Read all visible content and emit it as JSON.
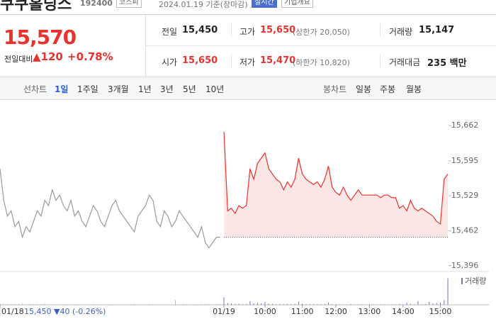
{
  "header": {
    "name": "쿠쿠홀딩스",
    "code": "192400",
    "market": "코스피",
    "date": "2024.01.19 기준(장마감)",
    "realtime": "실시간",
    "company_info": "기업개요"
  },
  "quote": {
    "price": "15,570",
    "change_label": "전일대비",
    "change": "▲120",
    "change_rate": "+0.78%",
    "rows": [
      [
        {
          "label": "전일",
          "value": "15,450"
        },
        {
          "label": "고가",
          "value": "15,650",
          "note": "(상한가 20,050)"
        },
        {
          "label": "거래량",
          "value": "15,147"
        }
      ],
      [
        {
          "label": "시가",
          "value": "15,650"
        },
        {
          "label": "저가",
          "value": "15,470",
          "note": "(하한가 10,820)"
        },
        {
          "label": "거래대금",
          "value": "235 백만"
        }
      ]
    ]
  },
  "tabs": {
    "line": "선차트",
    "periods": [
      "1일",
      "1주일",
      "3개월",
      "1년",
      "3년",
      "5년",
      "10년"
    ],
    "candle": "봉차트",
    "candle_periods": [
      "일봉",
      "주봉",
      "월봉"
    ]
  },
  "chart_data": {
    "type": "line",
    "xlim": [
      0,
      131
    ],
    "xticks": [
      {
        "value": 0,
        "label": "01/18"
      },
      {
        "value": 60,
        "label": "01/19"
      },
      {
        "value": 71,
        "label": "10:00"
      },
      {
        "value": 81,
        "label": "11:00"
      },
      {
        "value": 90,
        "label": "12:00"
      },
      {
        "value": 99,
        "label": "13:00"
      },
      {
        "value": 108,
        "label": "14:00"
      },
      {
        "value": 118,
        "label": "15:00"
      }
    ],
    "ylim": [
      15385,
      15701
    ],
    "yticks": [
      {
        "value": 15662,
        "label": "15,662"
      },
      {
        "value": 15595,
        "label": "15,595"
      },
      {
        "value": 15529,
        "label": "15,529"
      },
      {
        "value": 15462,
        "label": "15,462"
      },
      {
        "value": 15396,
        "label": "15,396"
      }
    ],
    "y2lim": [
      0,
      3000
    ],
    "baseline": 15450,
    "annotation": "15,450 ▼40 (-0.26%)",
    "grid": false,
    "series": [
      {
        "color": "#9a9a9a",
        "fill": false,
        "x": [
          0,
          1,
          2,
          3,
          4,
          5,
          6,
          7,
          8,
          9,
          10,
          11,
          12,
          13,
          14,
          15,
          16,
          17,
          18,
          19,
          20,
          21,
          22,
          23,
          24,
          25,
          26,
          27,
          28,
          29,
          30,
          31,
          32,
          33,
          34,
          35,
          36,
          37,
          38,
          39,
          40,
          41,
          42,
          43,
          44,
          45,
          46,
          47,
          48,
          49,
          50,
          51,
          52,
          53,
          54,
          55,
          56,
          57,
          58,
          59
        ],
        "values": [
          15580,
          15520,
          15490,
          15500,
          15470,
          15480,
          15450,
          15470,
          15460,
          15480,
          15500,
          15490,
          15520,
          15510,
          15540,
          15520,
          15530,
          15510,
          15500,
          15520,
          15490,
          15500,
          15480,
          15470,
          15490,
          15510,
          15500,
          15480,
          15470,
          15490,
          15510,
          15520,
          15500,
          15490,
          15480,
          15470,
          15460,
          15490,
          15500,
          15510,
          15530,
          15520,
          15480,
          15470,
          15500,
          15490,
          15470,
          15480,
          15500,
          15490,
          15480,
          15470,
          15460,
          15450,
          15470,
          15440,
          15430,
          15440,
          15450,
          15450
        ]
      },
      {
        "color": "#e8322e",
        "fill": true,
        "x": [
          60,
          61,
          62,
          63,
          64,
          65,
          66,
          67,
          68,
          69,
          70,
          71,
          72,
          73,
          74,
          75,
          76,
          77,
          78,
          79,
          80,
          81,
          82,
          83,
          84,
          85,
          86,
          87,
          88,
          89,
          90,
          91,
          92,
          93,
          94,
          95,
          96,
          97,
          98,
          99,
          100,
          101,
          102,
          103,
          104,
          105,
          106,
          107,
          108,
          109,
          110,
          111,
          112,
          113,
          114,
          115,
          116,
          117,
          118,
          119,
          120
        ],
        "values": [
          15650,
          15500,
          15505,
          15495,
          15510,
          15505,
          15510,
          15580,
          15560,
          15590,
          15600,
          15610,
          15580,
          15570,
          15560,
          15555,
          15540,
          15555,
          15545,
          15560,
          15600,
          15570,
          15560,
          15555,
          15550,
          15555,
          15545,
          15560,
          15585,
          15545,
          15535,
          15530,
          15545,
          15530,
          15520,
          15530,
          15540,
          15530,
          15530,
          15530,
          15530,
          15530,
          15525,
          15530,
          15530,
          15525,
          15525,
          15505,
          15510,
          15500,
          15520,
          15505,
          15500,
          15505,
          15500,
          15495,
          15490,
          15480,
          15475,
          15560,
          15570
        ]
      },
      {
        "name": "거래량",
        "axis": "y2",
        "color": "#7e70c4",
        "x": [
          60,
          61,
          62,
          63,
          64,
          65,
          66,
          67,
          68,
          69,
          70,
          71,
          72,
          73,
          74,
          75,
          76,
          77,
          78,
          79,
          80,
          81,
          82,
          83,
          84,
          85,
          86,
          87,
          88,
          89,
          90,
          91,
          92,
          93,
          94,
          95,
          96,
          97,
          98,
          99,
          100,
          101,
          102,
          103,
          104,
          105,
          106,
          107,
          108,
          109,
          110,
          111,
          112,
          113,
          114,
          115,
          116,
          117,
          118,
          119,
          120
        ],
        "values": [
          800,
          200,
          150,
          100,
          120,
          80,
          90,
          400,
          150,
          200,
          180,
          300,
          120,
          90,
          60,
          80,
          70,
          100,
          60,
          90,
          350,
          120,
          80,
          60,
          70,
          50,
          60,
          90,
          250,
          70,
          60,
          50,
          40,
          50,
          70,
          40,
          50,
          40,
          30,
          40,
          30,
          40,
          30,
          50,
          40,
          30,
          60,
          90,
          40,
          200,
          120,
          50,
          400,
          60,
          80,
          300,
          150,
          200,
          250,
          500,
          2800
        ]
      },
      {
        "axis": "y2",
        "color": "#b5b5b5",
        "x": [
          0,
          1,
          2,
          3,
          4,
          5,
          6,
          7,
          8,
          9,
          10,
          11,
          12,
          13,
          14,
          15,
          16,
          17,
          18,
          19,
          20,
          21,
          22,
          23,
          24,
          25,
          26,
          27,
          28,
          29,
          30,
          31,
          32,
          33,
          34,
          35,
          36,
          37,
          38,
          39,
          40,
          41,
          42,
          43,
          44,
          45,
          46,
          47,
          48,
          49,
          50,
          51,
          52,
          53,
          54,
          55,
          56,
          57,
          58,
          59
        ],
        "values": [
          150,
          100,
          80,
          60,
          90,
          70,
          120,
          50,
          60,
          80,
          80,
          60,
          100,
          50,
          70,
          40,
          60,
          50,
          80,
          60,
          50,
          70,
          60,
          40,
          50,
          80,
          60,
          50,
          40,
          60,
          70,
          50,
          60,
          40,
          50,
          60,
          80,
          50,
          40,
          60,
          90,
          50,
          60,
          40,
          70,
          50,
          60,
          500,
          70,
          80,
          60,
          50,
          70,
          60,
          80,
          100,
          60,
          50,
          70,
          90
        ]
      }
    ]
  }
}
